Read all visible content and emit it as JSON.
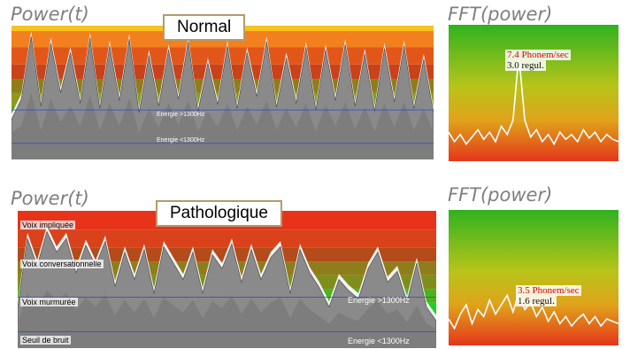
{
  "top": {
    "power_heading": "Power(t)",
    "fft_heading": "FFT(power)",
    "tag": "Normal",
    "energy_high": "Energie >1300Hz",
    "energy_low": "Energie <1300Hz",
    "fft_rate": "7.4 Phonem/sec",
    "fft_regul": "3.0 regul."
  },
  "bottom": {
    "power_heading": "Power(t)",
    "fft_heading": "FFT(power)",
    "tag": "Pathologique",
    "zones": [
      "Voix impliquée",
      "Voix conversationnelle",
      "Voix murmurée",
      "Seuil de bruit"
    ],
    "energy_high": "Energie >1300Hz",
    "energy_low": "Energie <1300Hz",
    "fft_rate": "3.5 Phonem/sec",
    "fft_regul": "1.6 regul."
  },
  "colors": {
    "red": "#e8331b",
    "orange": "#f47a1e",
    "olive": "#8e9a1a",
    "green": "#1fd21f",
    "gray_trace": "#8a8a8a",
    "fft_line": "#ffffff",
    "tag_border": "#b59a6a"
  },
  "chart_data": [
    {
      "type": "area",
      "title": "Power(t)",
      "annotation": "Normal",
      "series": [
        {
          "name": "Energie <1300Hz",
          "values": [
            0.3,
            0.45,
            0.92,
            0.4,
            0.87,
            0.5,
            0.8,
            0.42,
            0.91,
            0.38,
            0.85,
            0.44,
            0.9,
            0.35,
            0.78,
            0.4,
            0.82,
            0.45,
            0.88,
            0.36,
            0.72,
            0.41,
            0.85,
            0.38,
            0.8,
            0.47,
            0.88,
            0.39,
            0.76,
            0.42,
            0.84,
            0.37,
            0.82,
            0.44,
            0.86,
            0.4,
            0.79,
            0.36,
            0.83,
            0.43,
            0.85,
            0.38,
            0.75,
            0.35
          ]
        },
        {
          "name": "Energie >1300Hz",
          "values": [
            0.2,
            0.25,
            0.5,
            0.22,
            0.45,
            0.28,
            0.4,
            0.25,
            0.48,
            0.22,
            0.42,
            0.25,
            0.46,
            0.2,
            0.38,
            0.24,
            0.42,
            0.26,
            0.44,
            0.21,
            0.36,
            0.24,
            0.42,
            0.22,
            0.4,
            0.26,
            0.44,
            0.22,
            0.38,
            0.24,
            0.42,
            0.21,
            0.41,
            0.25,
            0.43,
            0.23,
            0.39,
            0.21,
            0.42,
            0.24,
            0.43,
            0.22,
            0.38,
            0.2
          ]
        }
      ]
    },
    {
      "type": "line",
      "title": "FFT(power)",
      "peak_label": "7.4 Phonem/sec",
      "regularity_label": "3.0 regul.",
      "values": [
        0.2,
        0.12,
        0.18,
        0.1,
        0.16,
        0.22,
        0.14,
        0.2,
        0.12,
        0.25,
        0.18,
        0.3,
        0.85,
        0.3,
        0.16,
        0.22,
        0.12,
        0.18,
        0.1,
        0.2,
        0.14,
        0.18,
        0.12,
        0.22,
        0.15,
        0.2,
        0.12,
        0.18,
        0.14,
        0.12
      ]
    },
    {
      "type": "area",
      "title": "Power(t)",
      "annotation": "Pathologique",
      "zones": [
        "Voix impliquée",
        "Voix conversationnelle",
        "Voix murmurée",
        "Seuil de bruit"
      ],
      "series": [
        {
          "name": "Energie <1300Hz",
          "values": [
            0.3,
            0.8,
            0.6,
            0.85,
            0.7,
            0.8,
            0.55,
            0.75,
            0.6,
            0.78,
            0.45,
            0.7,
            0.5,
            0.72,
            0.4,
            0.74,
            0.62,
            0.5,
            0.7,
            0.4,
            0.68,
            0.58,
            0.76,
            0.48,
            0.72,
            0.5,
            0.66,
            0.74,
            0.4,
            0.72,
            0.55,
            0.44,
            0.3,
            0.5,
            0.42,
            0.36,
            0.58,
            0.7,
            0.48,
            0.56,
            0.34,
            0.62,
            0.3,
            0.2
          ]
        },
        {
          "name": "Energie >1300Hz",
          "values": [
            0.18,
            0.4,
            0.3,
            0.42,
            0.35,
            0.4,
            0.28,
            0.37,
            0.3,
            0.39,
            0.24,
            0.35,
            0.26,
            0.36,
            0.22,
            0.37,
            0.31,
            0.26,
            0.35,
            0.22,
            0.34,
            0.29,
            0.38,
            0.25,
            0.36,
            0.26,
            0.33,
            0.37,
            0.22,
            0.36,
            0.28,
            0.23,
            0.18,
            0.26,
            0.22,
            0.2,
            0.29,
            0.35,
            0.25,
            0.28,
            0.19,
            0.31,
            0.18,
            0.14
          ]
        }
      ]
    },
    {
      "type": "line",
      "title": "FFT(power)",
      "peak_label": "3.5 Phonem/sec",
      "regularity_label": "1.6 regul.",
      "values": [
        0.18,
        0.1,
        0.22,
        0.3,
        0.14,
        0.26,
        0.2,
        0.34,
        0.22,
        0.3,
        0.38,
        0.24,
        0.4,
        0.26,
        0.32,
        0.2,
        0.28,
        0.16,
        0.24,
        0.14,
        0.2,
        0.12,
        0.18,
        0.22,
        0.14,
        0.2,
        0.12,
        0.18,
        0.16,
        0.14
      ]
    }
  ]
}
